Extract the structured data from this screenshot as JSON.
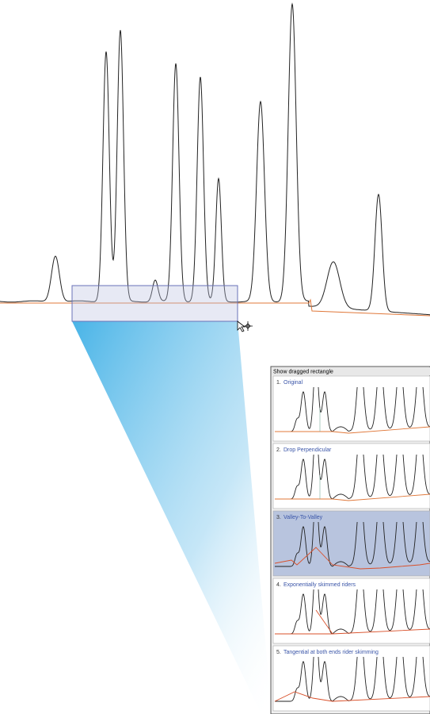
{
  "dialog": {
    "title": "Show dragged rectangle",
    "panels": [
      {
        "number": "1.",
        "label": "Original"
      },
      {
        "number": "2.",
        "label": "Drop Perpendicular"
      },
      {
        "number": "3.",
        "label": "Valley-To-Valley"
      },
      {
        "number": "4.",
        "label": "Exponentially skimmed riders"
      },
      {
        "number": "5.",
        "label": "Tangential at both ends rider skimming"
      }
    ]
  }
}
